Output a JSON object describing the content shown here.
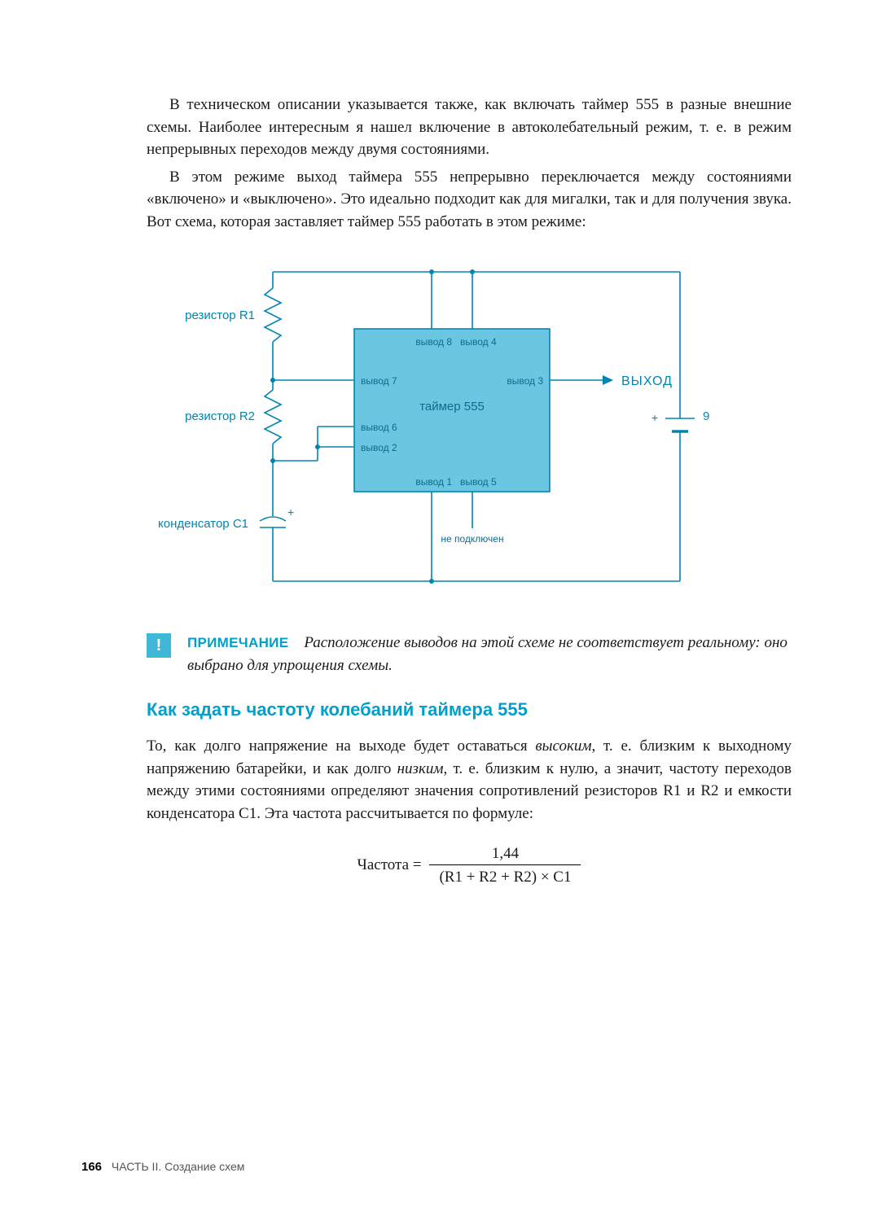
{
  "colors": {
    "accent": "#00a0cc",
    "diagram_fill": "#6bc6e2",
    "diagram_stroke": "#0085b2",
    "wire": "#0085b2",
    "label_blue": "#0085b2",
    "pin_label": "#0b6c8c",
    "text": "#1a1a1a"
  },
  "paragraphs": {
    "p1": "В техническом описании указывается также, как включать таймер 555 в разные внешние схемы. Наиболее интересным я нашел включение в автоколебательный режим, т. е. в режим непрерывных переходов между двумя состояниями.",
    "p2": "В этом режиме выход таймера 555 непрерывно переключается между состояниями «включено» и «выключено». Это идеально подходит как для мигалки, так и для получения звука. Вот схема, которая заставляет таймер 555 работать в этом режиме:"
  },
  "note": {
    "label": "ПРИМЕЧАНИЕ",
    "body": "Расположение выводов на этой схеме не соответствует реальному: оно выбрано для упрощения схемы."
  },
  "heading": "Как задать частоту колебаний таймера 555",
  "p3_html": "То, как долго напряжение на выходе будет оставаться <em>высоким</em>, т. е. близким к выходному напряжению батарейки, и как долго <em>низким</em>, т. е. близким к нулю, а значит, частоту переходов между этими состояниями определяют значения сопротивлений резисторов R1 и R2 и емкости конденсатора C1. Эта частота рассчитывается по формуле:",
  "formula": {
    "lhs": "Частота =",
    "numerator": "1,44",
    "denominator": "(R1 + R2 + R2) × C1"
  },
  "diagram": {
    "type": "circuit-schematic",
    "stroke_width": 1.6,
    "font_family": "Arial, sans-serif",
    "label_fontsize": 15,
    "pin_fontsize": 12,
    "timer_label": "таймер 555",
    "output_label": "ВЫХОД",
    "battery_label": "9 В",
    "battery_plus": "+",
    "not_connected": "не подключен",
    "components": {
      "r1": "резистор R1",
      "r2": "резистор R2",
      "c1": "конденсатор C1",
      "c1_plus": "+"
    },
    "pins": {
      "p8": "вывод 8",
      "p4": "вывод 4",
      "p7": "вывод 7",
      "p3": "вывод 3",
      "p6": "вывод 6",
      "p2": "вывод 2",
      "p1": "вывод 1",
      "p5": "вывод 5"
    }
  },
  "footer": {
    "page_number": "166",
    "section": "ЧАСТЬ II. Создание схем"
  }
}
